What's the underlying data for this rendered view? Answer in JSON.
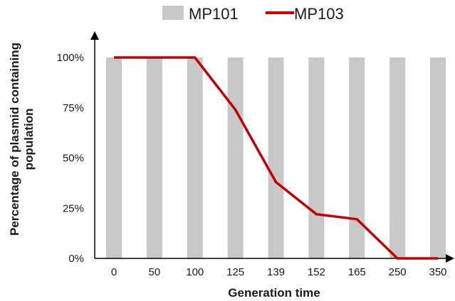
{
  "chart_data": {
    "type": "bar",
    "categories": [
      "0",
      "50",
      "100",
      "125",
      "139",
      "152",
      "165",
      "250",
      "350"
    ],
    "series": [
      {
        "name": "MP101",
        "kind": "bar",
        "color": "#c8c8c8",
        "values": [
          100,
          100,
          100,
          100,
          100,
          100,
          100,
          100,
          100
        ]
      },
      {
        "name": "MP103",
        "kind": "line",
        "color": "#c00000",
        "values": [
          100,
          100,
          100,
          74,
          38,
          22,
          19.5,
          0,
          0
        ]
      }
    ],
    "xlabel": "Generation time",
    "ylabel_lines": [
      "Percentage of plasmid containing",
      "population"
    ],
    "ylim": [
      0,
      100
    ],
    "yticks": [
      "0%",
      "25%",
      "50%",
      "75%",
      "100%"
    ],
    "ytick_values": [
      0,
      25,
      50,
      75,
      100
    ],
    "legend": "top",
    "grid": false
  }
}
